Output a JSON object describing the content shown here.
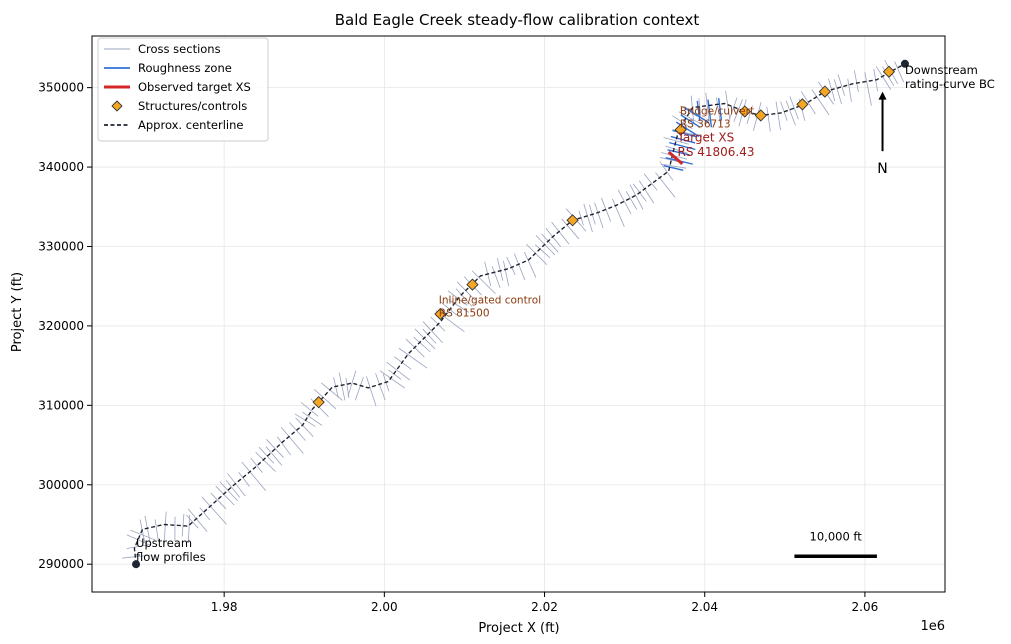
{
  "chart_data": {
    "type": "line",
    "title": "Bald Eagle Creek steady-flow calibration context",
    "xlabel": "Project X (ft)",
    "ylabel": "Project Y (ft)",
    "x_offset_label": "1e6",
    "xlim": [
      1.9635,
      2.07
    ],
    "ylim": [
      286500,
      356500
    ],
    "x_ticks": [
      1.98,
      2.0,
      2.02,
      2.04,
      2.06
    ],
    "x_tick_labels": [
      "1.98",
      "2.00",
      "2.02",
      "2.04",
      "2.06"
    ],
    "y_ticks": [
      290000,
      300000,
      310000,
      320000,
      330000,
      340000,
      350000
    ],
    "y_tick_labels": [
      "290000",
      "300000",
      "310000",
      "320000",
      "330000",
      "340000",
      "350000"
    ],
    "grid": true,
    "legend_position": "top-left",
    "legend": [
      {
        "label": "Cross sections",
        "style": "thin-line",
        "color": "#9aa3bf"
      },
      {
        "label": "Roughness zone",
        "style": "line",
        "color": "#2f6fd6"
      },
      {
        "label": "Observed target XS",
        "style": "thick-line",
        "color": "#d62728"
      },
      {
        "label": "Structures/controls",
        "style": "diamond",
        "color": "#f5a623"
      },
      {
        "label": "Approx. centerline",
        "style": "dashed",
        "color": "#1f2633"
      }
    ],
    "centerline": [
      [
        1.969,
        290000
      ],
      [
        1.9688,
        292000
      ],
      [
        1.9698,
        294400
      ],
      [
        1.9725,
        295000
      ],
      [
        1.9755,
        294800
      ],
      [
        1.9785,
        297500
      ],
      [
        1.981,
        299800
      ],
      [
        1.984,
        302300
      ],
      [
        1.9872,
        305300
      ],
      [
        1.9898,
        307500
      ],
      [
        1.991,
        309500
      ],
      [
        1.9918,
        310400
      ],
      [
        1.9935,
        312300
      ],
      [
        1.996,
        312800
      ],
      [
        1.998,
        312200
      ],
      [
        2.0005,
        313000
      ],
      [
        2.003,
        316500
      ],
      [
        2.007,
        320500
      ],
      [
        2.0095,
        323800
      ],
      [
        2.012,
        326300
      ],
      [
        2.0155,
        327200
      ],
      [
        2.018,
        328300
      ],
      [
        2.021,
        331200
      ],
      [
        2.0235,
        333300
      ],
      [
        2.0265,
        334200
      ],
      [
        2.029,
        335200
      ],
      [
        2.0315,
        336500
      ],
      [
        2.0335,
        338000
      ],
      [
        2.0355,
        339500
      ],
      [
        2.0362,
        342500
      ],
      [
        2.0368,
        344800
      ],
      [
        2.0385,
        347500
      ],
      [
        2.0425,
        348000
      ],
      [
        2.045,
        347000
      ],
      [
        2.047,
        346500
      ],
      [
        2.0495,
        346800
      ],
      [
        2.0525,
        347900
      ],
      [
        2.055,
        349500
      ],
      [
        2.0585,
        350500
      ],
      [
        2.0615,
        351000
      ],
      [
        2.0632,
        352000
      ],
      [
        2.065,
        353000
      ]
    ],
    "endpoints": [
      {
        "x": 1.969,
        "y": 290000,
        "label_lines": [
          "Upstream",
          "flow profiles"
        ],
        "align": "right"
      },
      {
        "x": 2.065,
        "y": 353000,
        "label_lines": [
          "Downstream",
          "rating-curve BC"
        ],
        "align": "below-right"
      }
    ],
    "structures": [
      {
        "x": 1.9918,
        "y": 310400
      },
      {
        "x": 2.007,
        "y": 321500
      },
      {
        "x": 2.011,
        "y": 325200
      },
      {
        "x": 2.0235,
        "y": 333300
      },
      {
        "x": 2.037,
        "y": 344700
      },
      {
        "x": 2.045,
        "y": 347000
      },
      {
        "x": 2.047,
        "y": 346500
      },
      {
        "x": 2.0522,
        "y": 347900
      },
      {
        "x": 2.055,
        "y": 349500
      },
      {
        "x": 2.063,
        "y": 352000
      }
    ],
    "roughness_zone": {
      "x_range": [
        2.0345,
        2.043
      ],
      "y_range": [
        342500,
        350500
      ]
    },
    "target_xs": {
      "x1": 2.0355,
      "y1": 341900,
      "x2": 2.0372,
      "y2": 340400
    },
    "annotations": [
      {
        "id": "inline",
        "x": 2.0068,
        "y": 322800,
        "lines": [
          "Inline/gated control",
          "RS 81500"
        ],
        "color": "#8b3a0e",
        "size": "small"
      },
      {
        "id": "bridge",
        "x": 2.0369,
        "y": 346600,
        "lines": [
          "Bridge/culvert",
          "RS 36713"
        ],
        "color": "#8b3a0e",
        "size": "small"
      },
      {
        "id": "target",
        "x": 2.0366,
        "y": 343200,
        "lines": [
          "Target XS",
          "RS 41806.43"
        ],
        "color": "#a01d1d",
        "size": "normal"
      }
    ],
    "north_arrow": {
      "label": "N",
      "x": 2.0622,
      "y_tail": 342000,
      "y_head": 349500
    },
    "scale_bar": {
      "label": "10,000 ft",
      "x1": 2.0512,
      "x2": 2.0615,
      "y": 291000
    }
  }
}
